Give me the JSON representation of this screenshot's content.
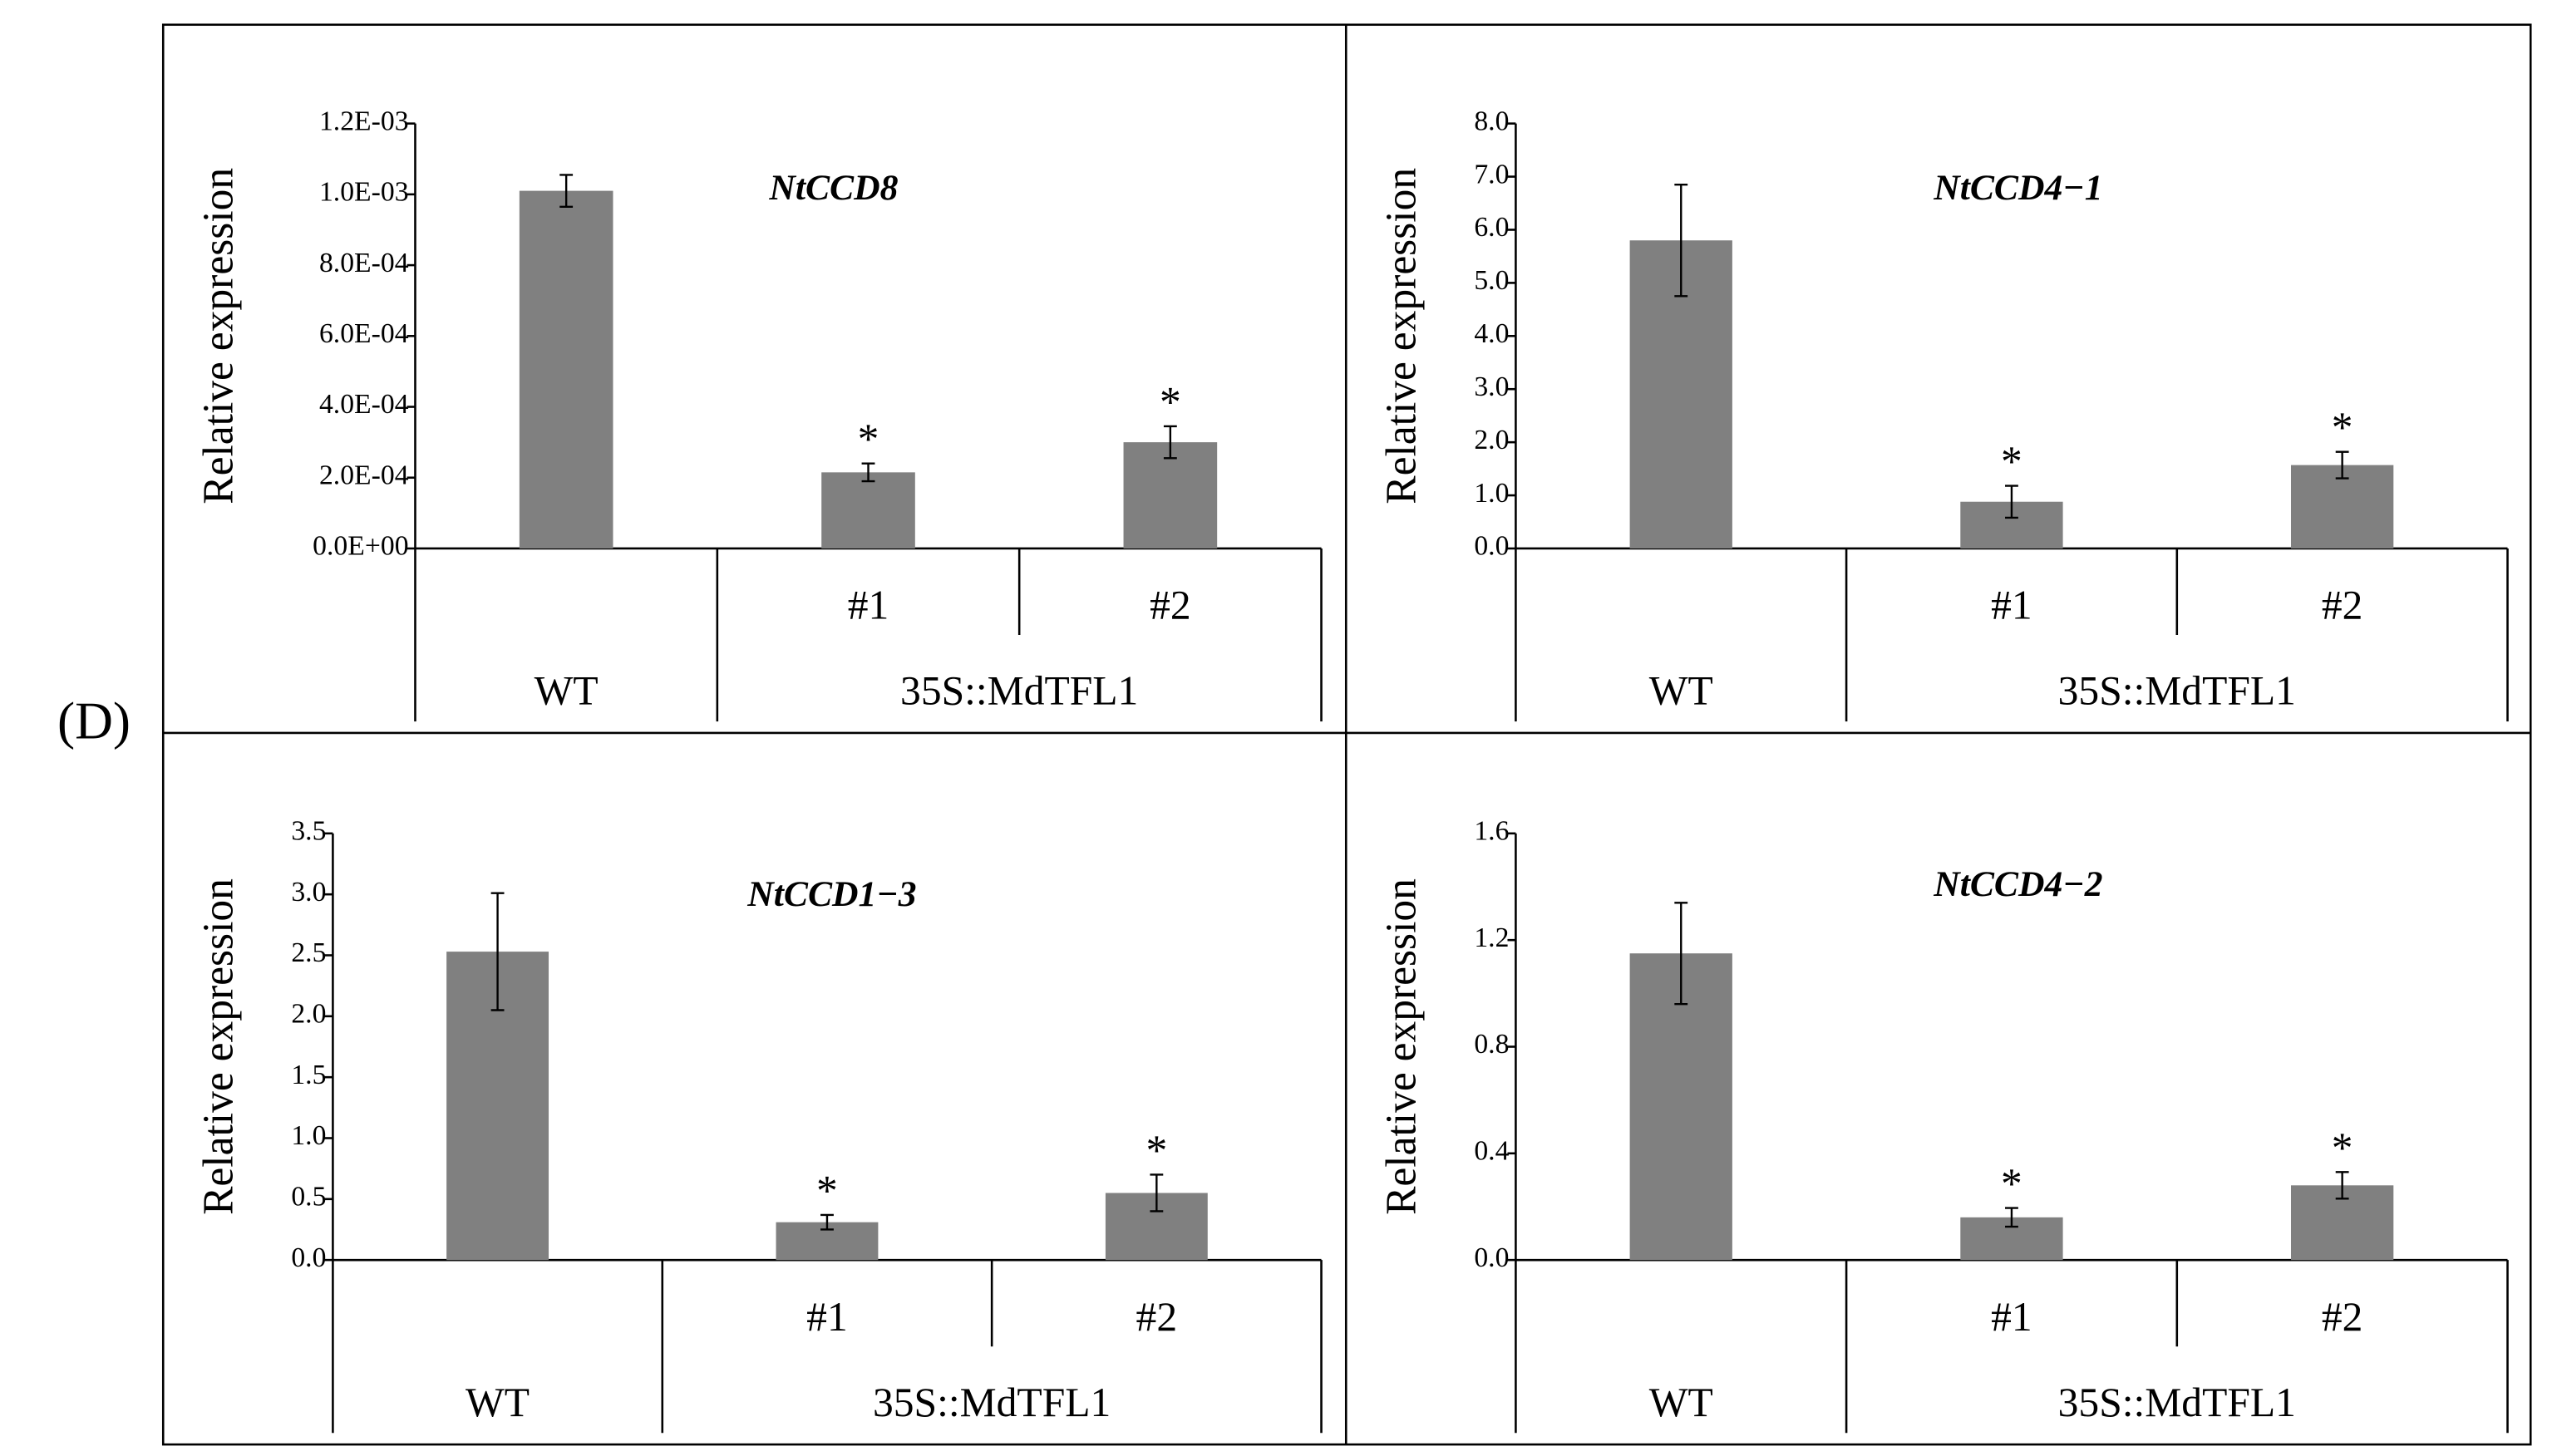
{
  "panel_label": "(D)",
  "chart_data": [
    {
      "type": "bar",
      "title": "NtCCD8",
      "y_label": "Relative expression",
      "categories": [
        null,
        "#1",
        "#2"
      ],
      "groups": [
        {
          "label": "WT",
          "span": 1
        },
        {
          "label": "35S::MdTFL1",
          "span": 2
        }
      ],
      "values": [
        0.00101,
        0.000215,
        0.0003
      ],
      "errors": [
        4.5e-05,
        2.5e-05,
        4.5e-05
      ],
      "annotations": [
        null,
        "*",
        "*"
      ],
      "color": "#808080",
      "ylim": [
        0,
        0.0012
      ],
      "yticks": [
        {
          "value": 0,
          "label": "0.0E+00"
        },
        {
          "value": 0.0002,
          "label": "2.0E-04"
        },
        {
          "value": 0.0004,
          "label": "4.0E-04"
        },
        {
          "value": 0.0006,
          "label": "6.0E-04"
        },
        {
          "value": 0.0008,
          "label": "8.0E-04"
        },
        {
          "value": 0.001,
          "label": "1.0E-03"
        },
        {
          "value": 0.0012,
          "label": "1.2E-03"
        }
      ]
    },
    {
      "type": "bar",
      "title": "NtCCD4−1",
      "y_label": "Relative expression",
      "categories": [
        null,
        "#1",
        "#2"
      ],
      "groups": [
        {
          "label": "WT",
          "span": 1
        },
        {
          "label": "35S::MdTFL1",
          "span": 2
        }
      ],
      "values": [
        5.8,
        0.88,
        1.57
      ],
      "errors": [
        1.05,
        0.3,
        0.25
      ],
      "annotations": [
        null,
        "*",
        "*"
      ],
      "color": "#808080",
      "ylim": [
        0,
        8
      ],
      "yticks": [
        {
          "value": 0,
          "label": "0.0"
        },
        {
          "value": 1,
          "label": "1.0"
        },
        {
          "value": 2,
          "label": "2.0"
        },
        {
          "value": 3,
          "label": "3.0"
        },
        {
          "value": 4,
          "label": "4.0"
        },
        {
          "value": 5,
          "label": "5.0"
        },
        {
          "value": 6,
          "label": "6.0"
        },
        {
          "value": 7,
          "label": "7.0"
        },
        {
          "value": 8,
          "label": "8.0"
        }
      ]
    },
    {
      "type": "bar",
      "title": "NtCCD1−3",
      "y_label": "Relative expression",
      "categories": [
        null,
        "#1",
        "#2"
      ],
      "groups": [
        {
          "label": "WT",
          "span": 1
        },
        {
          "label": "35S::MdTFL1",
          "span": 2
        }
      ],
      "values": [
        2.53,
        0.31,
        0.55
      ],
      "errors": [
        0.48,
        0.06,
        0.15
      ],
      "annotations": [
        null,
        "*",
        "*"
      ],
      "color": "#808080",
      "ylim": [
        0,
        3.5
      ],
      "yticks": [
        {
          "value": 0,
          "label": "0.0"
        },
        0.5,
        {
          "value": 1,
          "label": "1.0"
        },
        1.5,
        {
          "value": 2,
          "label": "2.0"
        },
        2.5,
        {
          "value": 3,
          "label": "3.0"
        },
        3.5
      ]
    },
    {
      "type": "bar",
      "title": "NtCCD4−2",
      "y_label": "Relative expression",
      "categories": [
        null,
        "#1",
        "#2"
      ],
      "groups": [
        {
          "label": "WT",
          "span": 1
        },
        {
          "label": "35S::MdTFL1",
          "span": 2
        }
      ],
      "values": [
        1.15,
        0.16,
        0.28
      ],
      "errors": [
        0.19,
        0.035,
        0.05
      ],
      "annotations": [
        null,
        "*",
        "*"
      ],
      "color": "#808080",
      "ylim": [
        0,
        1.6
      ],
      "yticks": [
        {
          "value": 0,
          "label": "0.0"
        },
        0.4,
        0.8,
        1.2,
        1.6
      ]
    }
  ]
}
